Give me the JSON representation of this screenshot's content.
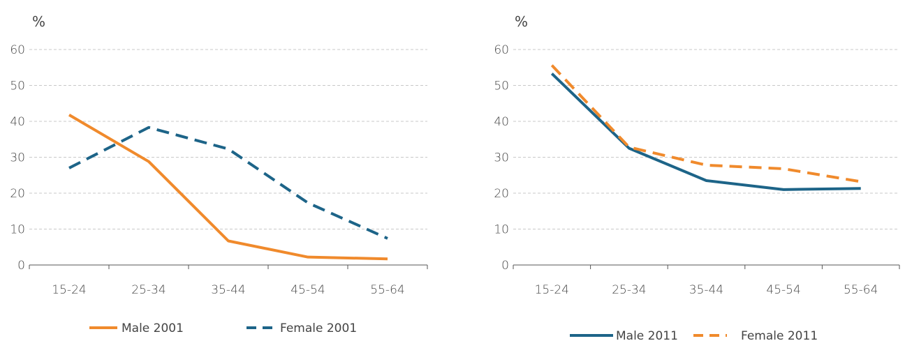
{
  "chart_data": [
    {
      "type": "line",
      "title": "",
      "unit_label": "%",
      "xlabel": "",
      "ylabel": "%",
      "categories": [
        "15-24",
        "25-34",
        "35-44",
        "45-54",
        "55-64"
      ],
      "ylim": [
        0,
        60
      ],
      "yticks": [
        "0",
        "10",
        "20",
        "30",
        "40",
        "50",
        "60"
      ],
      "grid": true,
      "legend_position": "bottom",
      "series": [
        {
          "name": "Male 2001",
          "values": [
            41.8,
            28.8,
            6.7,
            2.2,
            1.7
          ],
          "color": "#f08a2c",
          "dash": "solid"
        },
        {
          "name": "Female 2001",
          "values": [
            27.0,
            38.3,
            32.3,
            17.3,
            7.4
          ],
          "color": "#1d6488",
          "dash": "dashed"
        }
      ]
    },
    {
      "type": "line",
      "title": "",
      "unit_label": "%",
      "xlabel": "",
      "ylabel": "%",
      "categories": [
        "15-24",
        "25-34",
        "35-44",
        "45-54",
        "55-64"
      ],
      "ylim": [
        0,
        60
      ],
      "yticks": [
        "0",
        "10",
        "20",
        "30",
        "40",
        "50",
        "60"
      ],
      "grid": true,
      "legend_position": "bottom",
      "series": [
        {
          "name": "Male 2011",
          "values": [
            53.3,
            32.5,
            23.5,
            21.0,
            21.3
          ],
          "color": "#1d6488",
          "dash": "solid"
        },
        {
          "name": "Female 2011",
          "values": [
            55.6,
            32.8,
            27.8,
            26.8,
            23.2
          ],
          "color": "#f08a2c",
          "dash": "dashed"
        }
      ]
    }
  ]
}
